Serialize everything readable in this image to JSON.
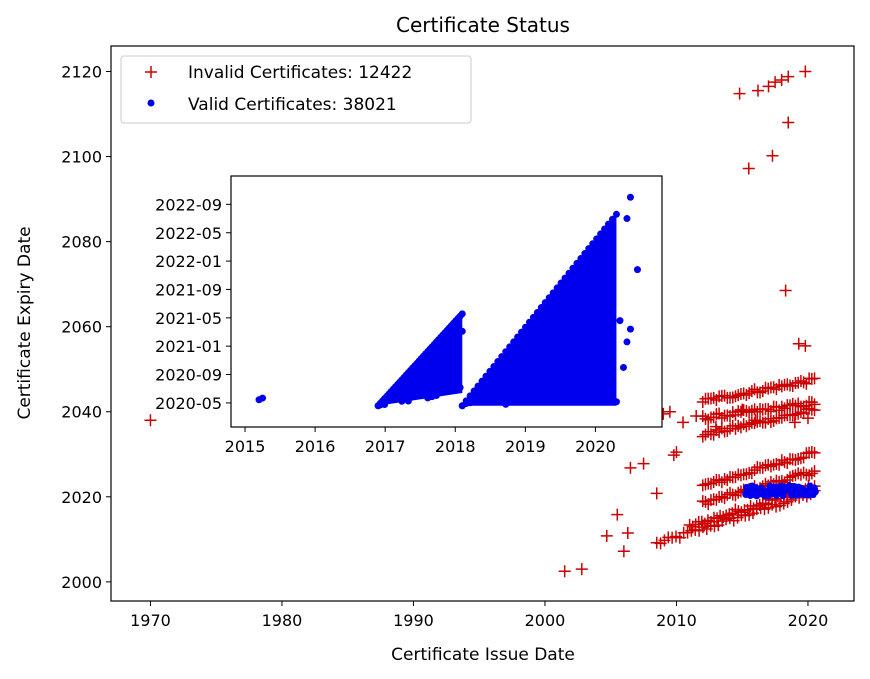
{
  "chart_data": {
    "type": "scatter",
    "title": "Certificate Status",
    "xlabel": "Certificate Issue Date",
    "ylabel": "Certificate Expiry Date",
    "xlim": [
      1967,
      2023.5
    ],
    "ylim": [
      1995.5,
      2126
    ],
    "xticks": [
      "1970",
      "1980",
      "1990",
      "2000",
      "2010",
      "2020"
    ],
    "yticks": [
      "2000",
      "2020",
      "2040",
      "2060",
      "2080",
      "2100",
      "2120"
    ],
    "legend": {
      "placement": "top-left"
    },
    "series": [
      {
        "name": "Invalid Certificates: 12422",
        "color": "#cc0000",
        "marker": "plus",
        "points": [
          [
            1970.0,
            2038.0
          ],
          [
            2001.5,
            2002.5
          ],
          [
            2002.8,
            2003.0
          ],
          [
            2004.7,
            2010.8
          ],
          [
            2005.5,
            2015.8
          ],
          [
            2006.0,
            2007.2
          ],
          [
            2006.3,
            2011.5
          ],
          [
            2006.5,
            2026.8
          ],
          [
            2007.5,
            2027.8
          ],
          [
            2008.5,
            2020.8
          ],
          [
            2009.8,
            2029.8
          ],
          [
            2010.0,
            2030.5
          ],
          [
            2010.5,
            2037.5
          ],
          [
            2009.0,
            2039.5
          ],
          [
            2009.5,
            2040.0
          ],
          [
            2014.8,
            2114.8
          ],
          [
            2015.5,
            2097.2
          ],
          [
            2016.2,
            2115.5
          ],
          [
            2017.0,
            2116.5
          ],
          [
            2017.5,
            2117.5
          ],
          [
            2018.0,
            2118.0
          ],
          [
            2018.5,
            2118.8
          ],
          [
            2019.8,
            2120.0
          ],
          [
            2017.3,
            2100.2
          ],
          [
            2018.5,
            2108.0
          ],
          [
            2018.3,
            2068.5
          ],
          [
            2019.3,
            2056.0
          ],
          [
            2019.8,
            2055.5
          ],
          [
            2015.0,
            2040.5
          ],
          [
            2016.0,
            2038.0
          ],
          [
            2013.0,
            2036.5
          ],
          [
            2011.5,
            2039.0
          ],
          [
            2019.0,
            2037.5
          ],
          [
            2020.0,
            2038.5
          ]
        ],
        "bands": [
          {
            "x_start": 2008.5,
            "x_end": 2020.5,
            "y_at_start": 2009.0,
            "y_at_end": 2021.0
          },
          {
            "x_start": 2011.0,
            "x_end": 2020.5,
            "y_at_start": 2013.0,
            "y_at_end": 2022.5
          },
          {
            "x_start": 2012.0,
            "x_end": 2020.5,
            "y_at_start": 2018.5,
            "y_at_end": 2026.0
          },
          {
            "x_start": 2012.0,
            "x_end": 2020.5,
            "y_at_start": 2022.5,
            "y_at_end": 2030.5
          },
          {
            "x_start": 2012.0,
            "x_end": 2020.5,
            "y_at_start": 2034.5,
            "y_at_end": 2040.5
          },
          {
            "x_start": 2012.0,
            "x_end": 2020.5,
            "y_at_start": 2038.5,
            "y_at_end": 2042.0
          },
          {
            "x_start": 2012.0,
            "x_end": 2020.5,
            "y_at_start": 2042.5,
            "y_at_end": 2047.5
          }
        ]
      },
      {
        "name": "Valid Certificates: 38021",
        "color": "#0000ee",
        "marker": "dot",
        "cluster": {
          "x_start": 2015.2,
          "x_end": 2020.6,
          "y_min": 2020.2,
          "y_max": 2022.6
        }
      }
    ],
    "inset": {
      "type": "scatter",
      "series_name": "Valid Certificates: 38021",
      "color": "#0000ee",
      "xlim": [
        2014.8,
        2020.95
      ],
      "ylim": [
        2020.05,
        2023.0
      ],
      "xticks": [
        "2015",
        "2016",
        "2017",
        "2018",
        "2019",
        "2020"
      ],
      "yticks": [
        "2020-05",
        "2020-09",
        "2021-01",
        "2021-05",
        "2021-09",
        "2022-01",
        "2022-05",
        "2022-09"
      ],
      "ytick_values": [
        2020.333,
        2020.667,
        2021.0,
        2021.333,
        2021.667,
        2022.0,
        2022.333,
        2022.667
      ],
      "groups": [
        {
          "label": "2015 outlier",
          "points": [
            [
              2015.2,
              2020.37
            ],
            [
              2015.25,
              2020.39
            ]
          ]
        },
        {
          "label": "first wedge",
          "x_start": 2016.9,
          "x_end": 2018.1,
          "y_low_start": 2020.3,
          "y_low_end": 2020.45,
          "y_high_start": 2020.3,
          "y_high_end": 2021.38
        },
        {
          "label": "second wedge",
          "x_start": 2018.1,
          "x_end": 2020.3,
          "y_low_start": 2020.3,
          "y_low_end": 2020.3,
          "y_high_start": 2020.3,
          "y_high_end": 2022.55
        },
        {
          "label": "scattered extras",
          "points": [
            [
              2020.5,
              2022.75
            ],
            [
              2020.6,
              2021.9
            ],
            [
              2020.5,
              2021.2
            ],
            [
              2020.45,
              2021.05
            ],
            [
              2020.4,
              2020.75
            ],
            [
              2020.35,
              2021.3
            ],
            [
              2020.45,
              2022.5
            ]
          ]
        }
      ]
    }
  }
}
